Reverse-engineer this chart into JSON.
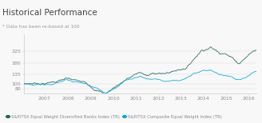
{
  "title": "Historical Performance",
  "subtitle": "* Data has been re-based at 100",
  "title_fontsize": 7.5,
  "subtitle_fontsize": 4.2,
  "background_color": "#f8f8f8",
  "plot_bg_color": "#f8f8f8",
  "grid_color": "#dddddd",
  "xtick_labels": [
    "2007",
    "2008",
    "2009",
    "2010",
    "2011",
    "2012",
    "2013",
    "2014",
    "2015",
    "2016"
  ],
  "ytick_values": [
    80,
    100,
    135,
    180,
    225
  ],
  "ylim": [
    62,
    290
  ],
  "line1_color": "#1e6b5e",
  "line2_color": "#00aaee",
  "legend1": "S&P/TSX Equal Weight Diversified Banks Index (TR)",
  "legend2": "S&P/TSX Composite Equal Weight Index (TR)",
  "legend_fontsize": 3.8,
  "tick_fontsize": 4.5,
  "tick_color": "#888888",
  "title_color": "#444444",
  "subtitle_color": "#999999"
}
